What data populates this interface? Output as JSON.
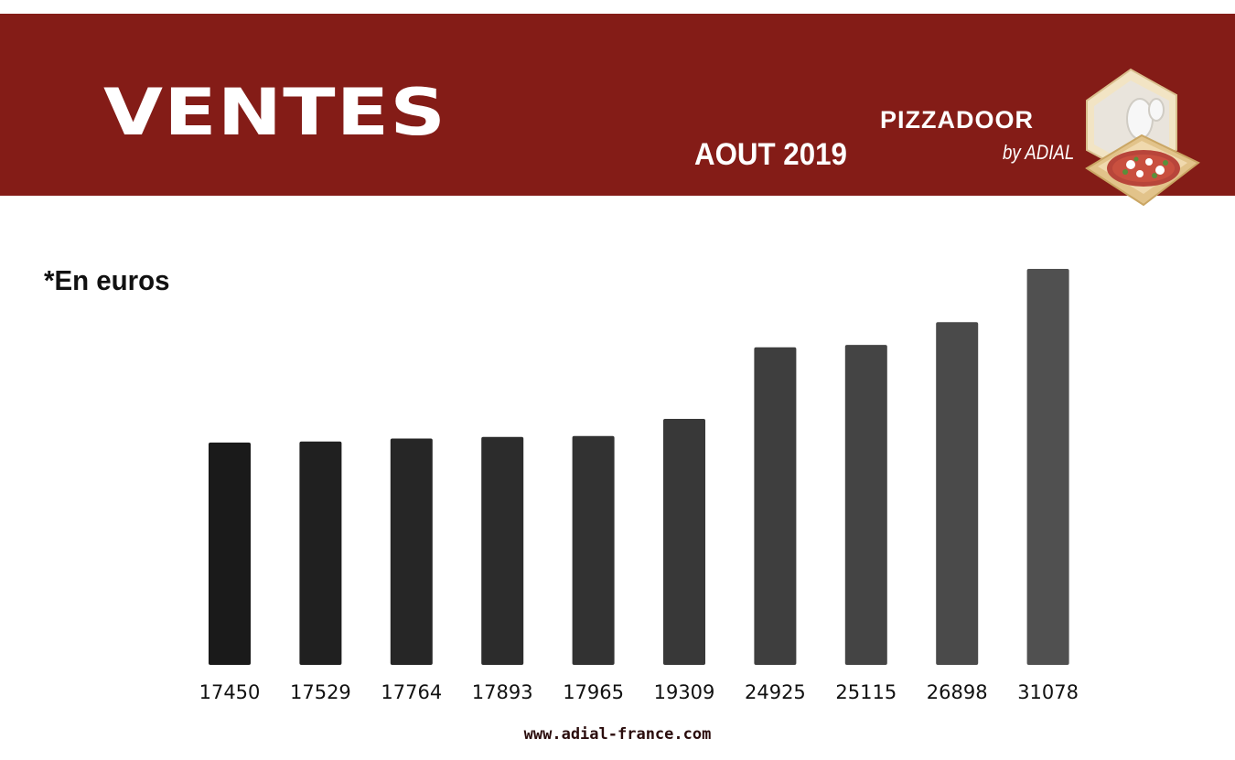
{
  "header": {
    "title": "VENTES",
    "period": "AOUT 2019",
    "brand_name": "PIZZADOOR",
    "brand_sub": "by ADIAL"
  },
  "note": "*En euros",
  "footer": {
    "url": "www.adial-france.com"
  },
  "colors": {
    "banner": "#841c17",
    "bar_start": "#1a1a1a",
    "bar_end": "#505050"
  },
  "icons": [
    "pizza-box-icon"
  ],
  "chart_data": {
    "type": "bar",
    "categories": [
      "17450",
      "17529",
      "17764",
      "17893",
      "17965",
      "19309",
      "24925",
      "25115",
      "26898",
      "31078"
    ],
    "values": [
      17450,
      17529,
      17764,
      17893,
      17965,
      19309,
      24925,
      25115,
      26898,
      31078
    ],
    "title": "",
    "xlabel": "",
    "ylabel": "",
    "ylim": [
      0,
      31078
    ],
    "grid": false,
    "legend": "none"
  }
}
